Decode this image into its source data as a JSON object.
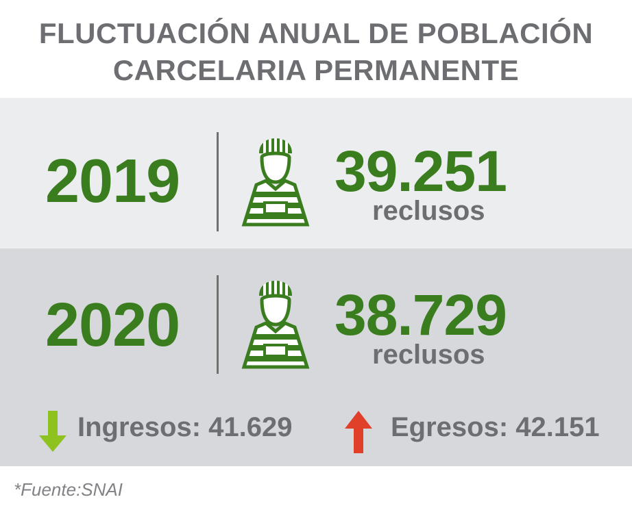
{
  "title": {
    "line1": "FLUCTUACIÓN ANUAL DE POBLACIÓN",
    "line2": "CARCELARIA PERMANENTE"
  },
  "rows": [
    {
      "year": "2019",
      "count": "39.251",
      "unit": "reclusos",
      "icon": "prisoner-icon"
    },
    {
      "year": "2020",
      "count": "38.729",
      "unit": "reclusos",
      "icon": "prisoner-icon"
    }
  ],
  "flows": {
    "ingresos": {
      "text": "Ingresos: 41.629",
      "icon": "arrow-down-icon",
      "color": "#8dc21f"
    },
    "egresos": {
      "text": "Egresos: 42.151",
      "icon": "arrow-up-icon",
      "color": "#e0402a"
    }
  },
  "source": "*Fuente:SNAI",
  "colors": {
    "accent_green": "#3a7d1e",
    "text_gray": "#6d6e71",
    "band_light": "#ecedef",
    "band_dark": "#d7d8db"
  }
}
